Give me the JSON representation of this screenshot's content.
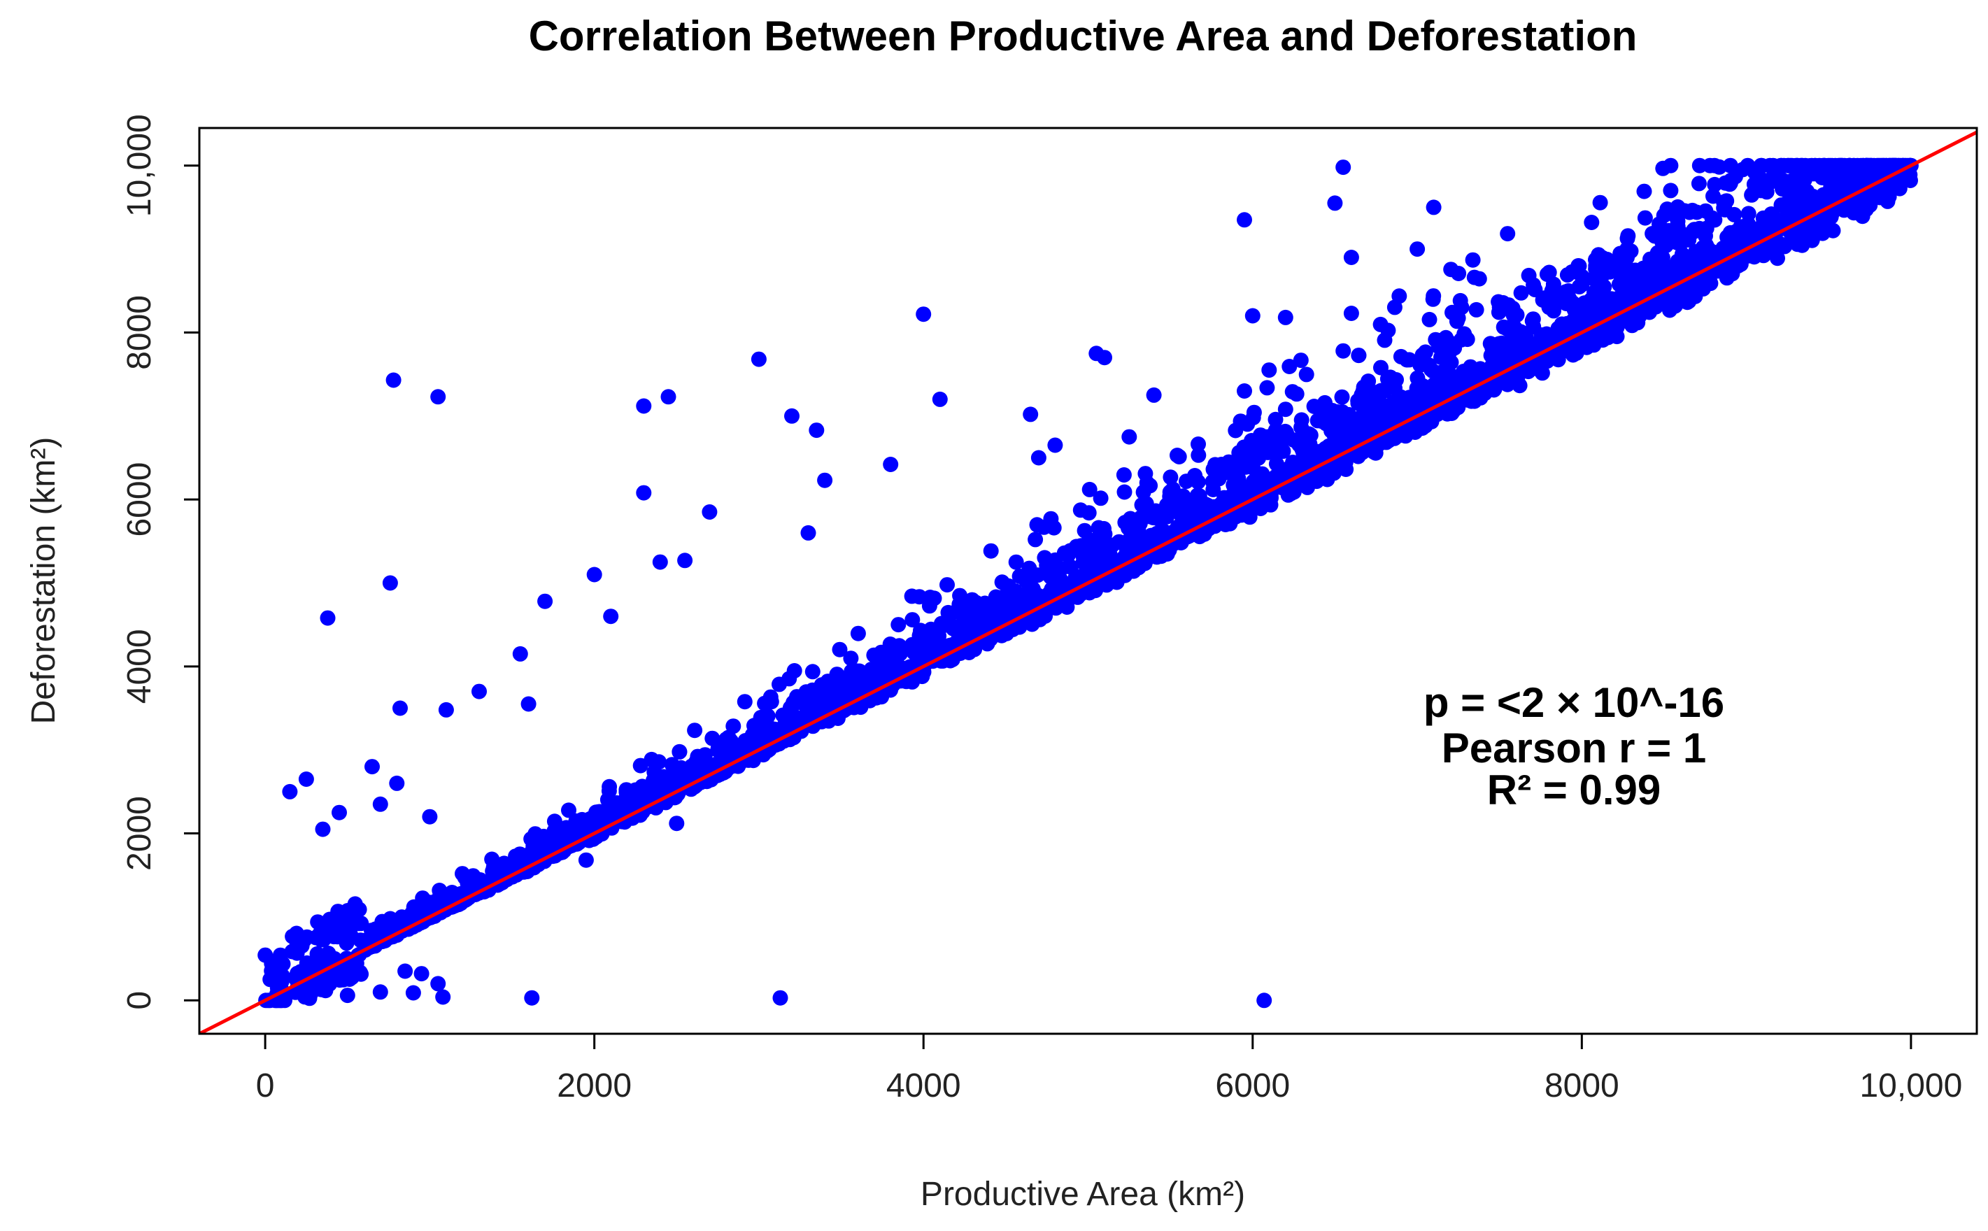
{
  "chart_data": {
    "type": "scatter",
    "title": "Correlation Between Productive Area and Deforestation",
    "xlabel": "Productive Area (km²)",
    "ylabel": "Deforestation (km²)",
    "xlim": [
      -400,
      10400
    ],
    "ylim": [
      -400,
      10450
    ],
    "x_ticks": [
      0,
      2000,
      4000,
      6000,
      8000,
      10000
    ],
    "x_tick_labels": [
      "0",
      "2000",
      "4000",
      "6000",
      "8000",
      "10,000"
    ],
    "y_ticks": [
      0,
      2000,
      4000,
      6000,
      8000,
      10000
    ],
    "y_tick_labels": [
      "0",
      "2000",
      "4000",
      "6000",
      "8000",
      "10,000"
    ],
    "grid": false,
    "point_color": "#0000ff",
    "line_color": "#ff0000",
    "fit_line": {
      "slope": 1.0,
      "intercept": 0
    },
    "annotations": [
      "p = <2 × 10^-16",
      "Pearson r = 1",
      "R² = 0.99"
    ],
    "outliers": [
      [
        6550,
        9980
      ],
      [
        6500,
        9550
      ],
      [
        7100,
        9500
      ],
      [
        5950,
        9350
      ],
      [
        7000,
        9000
      ],
      [
        6600,
        8900
      ],
      [
        4000,
        8220
      ],
      [
        6000,
        8200
      ],
      [
        6200,
        8180
      ],
      [
        6600,
        8230
      ],
      [
        5050,
        7750
      ],
      [
        5100,
        7700
      ],
      [
        3000,
        7680
      ],
      [
        6550,
        7780
      ],
      [
        6100,
        7550
      ],
      [
        780,
        7430
      ],
      [
        1050,
        7230
      ],
      [
        2300,
        7120
      ],
      [
        2450,
        7230
      ],
      [
        4100,
        7200
      ],
      [
        3200,
        7000
      ],
      [
        3350,
        6830
      ],
      [
        4650,
        7020
      ],
      [
        5950,
        7300
      ],
      [
        5400,
        7250
      ],
      [
        6200,
        7080
      ],
      [
        2300,
        6080
      ],
      [
        3400,
        6230
      ],
      [
        3800,
        6420
      ],
      [
        4700,
        6500
      ],
      [
        4800,
        6650
      ],
      [
        5250,
        6750
      ],
      [
        2700,
        5850
      ],
      [
        2400,
        5250
      ],
      [
        2550,
        5270
      ],
      [
        3300,
        5600
      ],
      [
        2000,
        5100
      ],
      [
        2100,
        4600
      ],
      [
        1700,
        4780
      ],
      [
        760,
        5000
      ],
      [
        380,
        4580
      ],
      [
        1550,
        4150
      ],
      [
        1300,
        3700
      ],
      [
        820,
        3500
      ],
      [
        1100,
        3480
      ],
      [
        1600,
        3550
      ],
      [
        250,
        2650
      ],
      [
        150,
        2500
      ],
      [
        650,
        2800
      ],
      [
        450,
        2250
      ],
      [
        2500,
        2120
      ],
      [
        1950,
        1680
      ],
      [
        1000,
        2200
      ],
      [
        800,
        2600
      ],
      [
        350,
        2050
      ],
      [
        700,
        2350
      ],
      [
        1620,
        30
      ],
      [
        3130,
        30
      ],
      [
        6070,
        0
      ],
      [
        950,
        320
      ],
      [
        850,
        350
      ],
      [
        1050,
        200
      ],
      [
        900,
        90
      ],
      [
        1080,
        40
      ],
      [
        700,
        100
      ],
      [
        500,
        60
      ]
    ]
  }
}
